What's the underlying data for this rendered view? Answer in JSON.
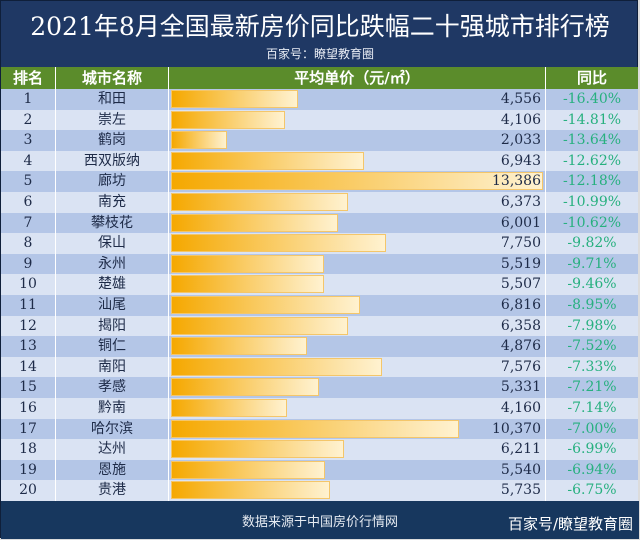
{
  "title": "2021年8月全国最新房价同比跌幅二十强城市排行榜",
  "subtitle": "百家号：瞭望教育圈",
  "footer": {
    "source": "数据来源于中国房价行情网",
    "brand": "百家号/瞭望教育圈"
  },
  "colors": {
    "header_bg": "#1f3864",
    "column_header": "#5b8c2b",
    "row_odd": "#b4c6e7",
    "row_even": "#dae3f3",
    "bar": "#f5a800",
    "change_text": "#27b07f"
  },
  "chart_data": {
    "type": "table",
    "columns": [
      "排名",
      "城市名称",
      "平均单价（元/㎡）",
      "同比"
    ],
    "rows": [
      [
        "1",
        "和田",
        "4,556",
        "-16.40%"
      ],
      [
        "2",
        "崇左",
        "4,106",
        "-14.81%"
      ],
      [
        "3",
        "鹤岗",
        "2,033",
        "-13.64%"
      ],
      [
        "4",
        "西双版纳",
        "6,943",
        "-12.62%"
      ],
      [
        "5",
        "廊坊",
        "13,386",
        "-12.18%"
      ],
      [
        "6",
        "南充",
        "6,373",
        "-10.99%"
      ],
      [
        "7",
        "攀枝花",
        "6,001",
        "-10.62%"
      ],
      [
        "8",
        "保山",
        "7,750",
        "-9.82%"
      ],
      [
        "9",
        "永州",
        "5,519",
        "-9.71%"
      ],
      [
        "10",
        "楚雄",
        "5,507",
        "-9.46%"
      ],
      [
        "11",
        "汕尾",
        "6,816",
        "-8.95%"
      ],
      [
        "12",
        "揭阳",
        "6,358",
        "-7.98%"
      ],
      [
        "13",
        "铜仁",
        "4,876",
        "-7.52%"
      ],
      [
        "14",
        "南阳",
        "7,576",
        "-7.33%"
      ],
      [
        "15",
        "孝感",
        "5,331",
        "-7.21%"
      ],
      [
        "16",
        "黔南",
        "4,160",
        "-7.14%"
      ],
      [
        "17",
        "哈尔滨",
        "10,370",
        "-7.00%"
      ],
      [
        "18",
        "达州",
        "6,211",
        "-6.99%"
      ],
      [
        "19",
        "恩施",
        "5,540",
        "-6.94%"
      ],
      [
        "20",
        "贵港",
        "5,735",
        "-6.75%"
      ]
    ],
    "bar_column": "平均单价（元/㎡）",
    "bar_max": 13386
  }
}
